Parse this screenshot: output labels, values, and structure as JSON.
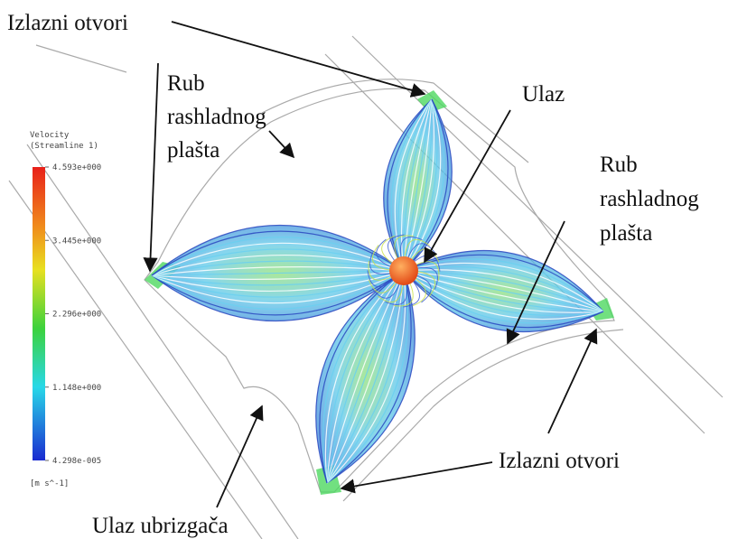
{
  "labels": {
    "top_left_outlets": "Izlazni otvori",
    "left_edge": [
      "Rub",
      "rashladnog",
      "plašta"
    ],
    "inlet": "Ulaz",
    "right_edge": [
      "Rub",
      "rashladnog",
      "plašta"
    ],
    "bottom_outlets": "Izlazni otvori",
    "injector_inlet": "Ulaz ubrizgača"
  },
  "legend": {
    "title": "Velocity",
    "subtitle": "(Streamline 1)",
    "ticks": [
      "4.593e+000",
      "3.445e+000",
      "2.296e+000",
      "1.148e+000",
      "4.298e-005"
    ],
    "unit": "[m s^-1]"
  }
}
